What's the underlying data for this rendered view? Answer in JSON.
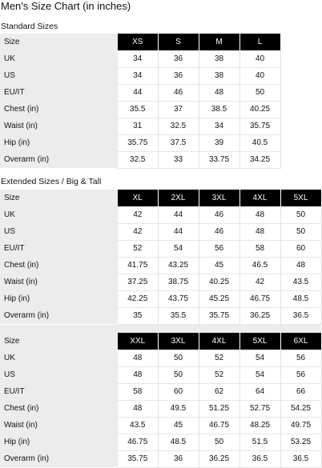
{
  "page": {
    "title": "Men's Size Chart (in inches)"
  },
  "sections": [
    {
      "title": "Standard Sizes",
      "columns": [
        "Size",
        "XS",
        "S",
        "M",
        "L"
      ],
      "rows": [
        {
          "label": "UK",
          "values": [
            "34",
            "36",
            "38",
            "40"
          ]
        },
        {
          "label": "US",
          "values": [
            "34",
            "36",
            "38",
            "40"
          ]
        },
        {
          "label": "EU/IT",
          "values": [
            "44",
            "46",
            "48",
            "50"
          ]
        },
        {
          "label": "Chest (in)",
          "values": [
            "35.5",
            "37",
            "38.5",
            "40.25"
          ]
        },
        {
          "label": "Waist (in)",
          "values": [
            "31",
            "32.5",
            "34",
            "35.75"
          ]
        },
        {
          "label": "Hip (in)",
          "values": [
            "35.75",
            "37.5",
            "39",
            "40.5"
          ]
        },
        {
          "label": "Overarm (in)",
          "values": [
            "32.5",
            "33",
            "33.75",
            "34.25"
          ]
        }
      ]
    },
    {
      "title": "Extended Sizes / Big & Tall",
      "columns": [
        "Size",
        "XL",
        "2XL",
        "3XL",
        "4XL",
        "5XL"
      ],
      "rows": [
        {
          "label": "UK",
          "values": [
            "42",
            "44",
            "46",
            "48",
            "50"
          ]
        },
        {
          "label": "US",
          "values": [
            "42",
            "44",
            "46",
            "48",
            "50"
          ]
        },
        {
          "label": "EU/IT",
          "values": [
            "52",
            "54",
            "56",
            "58",
            "60"
          ]
        },
        {
          "label": "Chest (in)",
          "values": [
            "41.75",
            "43.25",
            "45",
            "46.5",
            "48"
          ]
        },
        {
          "label": "Waist (in)",
          "values": [
            "37.25",
            "38.75",
            "40.25",
            "42",
            "43.5"
          ]
        },
        {
          "label": "Hip (in)",
          "values": [
            "42.25",
            "43.75",
            "45.25",
            "46.75",
            "48.5"
          ]
        },
        {
          "label": "Overarm (in)",
          "values": [
            "35",
            "35.5",
            "35.75",
            "36.25",
            "36.5"
          ]
        }
      ]
    },
    {
      "title": "",
      "columns": [
        "Size",
        "XXL",
        "3XL",
        "4XL",
        "5XL",
        "6XL"
      ],
      "rows": [
        {
          "label": "UK",
          "values": [
            "48",
            "50",
            "52",
            "54",
            "56"
          ]
        },
        {
          "label": "US",
          "values": [
            "48",
            "50",
            "52",
            "54",
            "56"
          ]
        },
        {
          "label": "EU/IT",
          "values": [
            "58",
            "60",
            "62",
            "64",
            "66"
          ]
        },
        {
          "label": "Chest (in)",
          "values": [
            "48",
            "49.5",
            "51.25",
            "52.75",
            "54.25"
          ]
        },
        {
          "label": "Waist (in)",
          "values": [
            "43.5",
            "45",
            "46.75",
            "48.25",
            "49.75"
          ]
        },
        {
          "label": "Hip (in)",
          "values": [
            "46.75",
            "48.5",
            "50",
            "51.5",
            "53.25"
          ]
        },
        {
          "label": "Overarm (in)",
          "values": [
            "35.75",
            "36",
            "36.25",
            "36.5",
            "36.5"
          ]
        }
      ]
    }
  ]
}
